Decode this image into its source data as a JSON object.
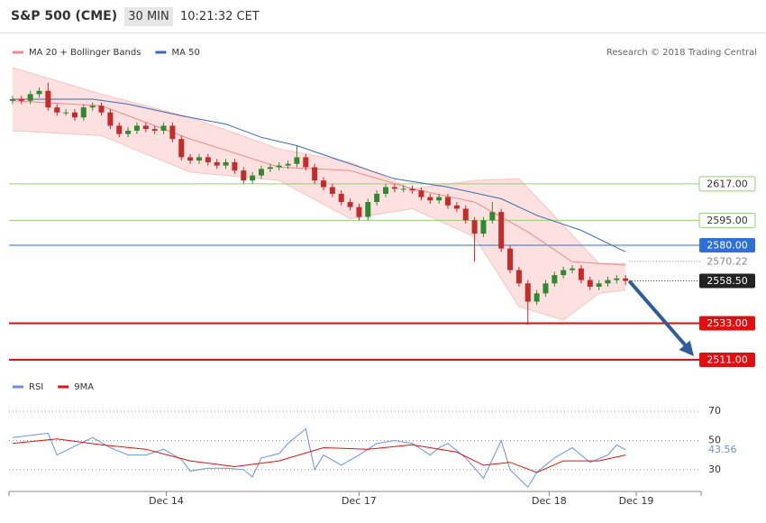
{
  "header": {
    "title": "S&P 500 (CME)",
    "interval": "30 MIN",
    "time": "10:21:32 CET"
  },
  "credit": "Research © 2018 Trading Central",
  "chart_data": [
    {
      "type": "candlestick",
      "legend": [
        {
          "name": "MA 20 + Bollinger Bands",
          "color": "#f08a8a"
        },
        {
          "name": "MA 50",
          "color": "#3d6aa8"
        }
      ],
      "up_color": "#2f8a2f",
      "down_color": "#c42b2b",
      "xlim": [
        -0.4,
        77.5
      ],
      "ylim": [
        2505,
        2706
      ],
      "xticks": [
        {
          "value": 17.3,
          "label": "Dec 14"
        },
        {
          "value": 39,
          "label": "Dec 17"
        },
        {
          "value": 60.4,
          "label": "Dec 18"
        },
        {
          "value": 70.2,
          "label": "Dec 19"
        }
      ],
      "open": [
        2667,
        2668,
        2667,
        2671,
        2673,
        2663,
        2660,
        2660,
        2657,
        2663,
        2664,
        2660,
        2652,
        2647,
        2649,
        2652,
        2650,
        2649,
        2652,
        2644,
        2633,
        2631,
        2633,
        2630,
        2628,
        2630,
        2625,
        2619,
        2622,
        2626,
        2627,
        2628,
        2629,
        2633,
        2627,
        2619,
        2615,
        2611,
        2606,
        2603,
        2597,
        2606,
        2611,
        2615,
        2614,
        2614,
        2613,
        2609,
        2607,
        2609,
        2604,
        2602,
        2595,
        2587,
        2595,
        2600,
        2578,
        2565,
        2557,
        2546,
        2551,
        2557,
        2562,
        2565,
        2566,
        2559,
        2555,
        2557,
        2559,
        2560
      ],
      "high": [
        2670,
        2670,
        2673,
        2675,
        2678,
        2665,
        2662,
        2662,
        2665,
        2666,
        2666,
        2662,
        2654,
        2651,
        2654,
        2654,
        2652,
        2654,
        2654,
        2646,
        2635,
        2635,
        2635,
        2632,
        2632,
        2632,
        2627,
        2624,
        2628,
        2629,
        2630,
        2631,
        2640,
        2635,
        2629,
        2621,
        2617,
        2613,
        2608,
        2605,
        2608,
        2613,
        2617,
        2617,
        2616,
        2616,
        2615,
        2611,
        2611,
        2611,
        2606,
        2604,
        2597,
        2597,
        2606,
        2602,
        2580,
        2567,
        2559,
        2553,
        2559,
        2564,
        2567,
        2568,
        2568,
        2561,
        2559,
        2561,
        2562,
        2562
      ],
      "low": [
        2665,
        2665,
        2665,
        2669,
        2661,
        2658,
        2658,
        2655,
        2655,
        2661,
        2658,
        2650,
        2645,
        2645,
        2647,
        2648,
        2647,
        2647,
        2642,
        2631,
        2629,
        2629,
        2628,
        2626,
        2626,
        2623,
        2617,
        2617,
        2620,
        2624,
        2625,
        2626,
        2627,
        2625,
        2617,
        2613,
        2609,
        2604,
        2601,
        2595,
        2595,
        2604,
        2609,
        2612,
        2612,
        2611,
        2607,
        2605,
        2605,
        2602,
        2600,
        2593,
        2570,
        2585,
        2593,
        2576,
        2563,
        2555,
        2532,
        2544,
        2549,
        2555,
        2560,
        2563,
        2557,
        2553,
        2553,
        2555,
        2557,
        2556
      ],
      "close": [
        2668,
        2667,
        2671,
        2673,
        2663,
        2660,
        2660,
        2657,
        2663,
        2664,
        2660,
        2652,
        2647,
        2649,
        2652,
        2650,
        2649,
        2652,
        2644,
        2633,
        2631,
        2633,
        2630,
        2628,
        2630,
        2625,
        2619,
        2622,
        2626,
        2627,
        2628,
        2629,
        2633,
        2627,
        2619,
        2615,
        2611,
        2606,
        2603,
        2597,
        2606,
        2611,
        2615,
        2614,
        2614,
        2613,
        2609,
        2607,
        2609,
        2604,
        2602,
        2595,
        2587,
        2595,
        2600,
        2578,
        2565,
        2557,
        2546,
        2551,
        2557,
        2562,
        2565,
        2566,
        2559,
        2555,
        2557,
        2559,
        2560,
        2558.5
      ],
      "ma50": {
        "color": "#3d6aa8",
        "x": [
          0,
          9,
          13,
          19,
          24,
          28,
          32,
          38,
          43,
          49,
          55,
          59,
          64,
          69
        ],
        "values": [
          2668,
          2668,
          2665,
          2658,
          2653,
          2645,
          2640,
          2629,
          2620,
          2615,
          2608,
          2598,
          2589,
          2576
        ]
      },
      "ma20": {
        "color": "#f08a8a",
        "x": [
          0,
          10,
          20,
          30,
          38,
          45,
          52,
          58,
          63,
          69
        ],
        "values": [
          2667,
          2664,
          2644,
          2627,
          2625,
          2614,
          2606,
          2588,
          2570,
          2568
        ]
      },
      "band": {
        "color": "#fde0e0",
        "x": [
          0,
          10,
          20,
          30,
          38,
          45,
          52,
          57,
          62,
          66,
          69
        ],
        "upper": [
          2687,
          2671,
          2657,
          2638,
          2630,
          2614,
          2619,
          2620,
          2592,
          2569,
          2569
        ],
        "lower": [
          2649,
          2646,
          2624,
          2619,
          2596,
          2602,
          2585,
          2543,
          2535,
          2551,
          2553
        ]
      },
      "levels": [
        {
          "value": 2617,
          "label": "2617.00",
          "color": "#9ccc7a",
          "line": "solid",
          "tag": "outline"
        },
        {
          "value": 2595,
          "label": "2595.00",
          "color": "#9ccc7a",
          "line": "solid",
          "tag": "outline"
        },
        {
          "value": 2580,
          "label": "2580.00",
          "color": "#2f6fd8",
          "line": "solid",
          "tag": "filled"
        },
        {
          "value": 2570.22,
          "label": "2570.22",
          "color": "#888888",
          "line": "dotted",
          "tag": "text"
        },
        {
          "value": 2558.5,
          "label": "2558.50",
          "color": "#222222",
          "line": "dotted",
          "tag": "filled"
        },
        {
          "value": 2533,
          "label": "2533.00",
          "color": "#e01010",
          "line": "thick",
          "tag": "filled"
        },
        {
          "value": 2511,
          "label": "2511.00",
          "color": "#e01010",
          "line": "thick",
          "tag": "filled"
        }
      ],
      "arrow_color": "#2f5d9c"
    },
    {
      "type": "line",
      "xlim": [
        -0.4,
        77.5
      ],
      "ylim": [
        15,
        80
      ],
      "yticks": [
        70,
        50,
        30
      ],
      "grid": true,
      "series": [
        {
          "name": "RSI",
          "color": "#6f8fe0",
          "x": [
            0,
            4,
            5,
            9,
            11,
            13,
            15,
            17,
            19,
            20,
            22,
            24,
            26,
            27,
            28,
            30,
            31,
            33,
            34,
            35,
            37,
            39,
            41,
            43,
            45,
            47,
            48,
            49,
            51,
            53,
            55,
            56,
            58,
            59,
            61,
            63,
            65,
            67,
            68,
            69
          ],
          "values": [
            52,
            55,
            40,
            52,
            45,
            40,
            40,
            44,
            37,
            29,
            31,
            31,
            30,
            25,
            38,
            41,
            48,
            58,
            30,
            40,
            33,
            40,
            48,
            50,
            48,
            40,
            45,
            48,
            38,
            24,
            50,
            30,
            18,
            28,
            38,
            45,
            35,
            40,
            47,
            43.56
          ]
        },
        {
          "name": "9MA",
          "color": "#e01010",
          "x": [
            0,
            5,
            10,
            15,
            20,
            25,
            30,
            35,
            40,
            45,
            50,
            53,
            56,
            59,
            62,
            66,
            69
          ],
          "values": [
            48,
            51,
            47,
            44,
            36,
            32,
            36,
            45,
            44,
            47,
            42,
            33,
            35,
            28,
            36,
            36,
            40
          ]
        }
      ]
    }
  ]
}
